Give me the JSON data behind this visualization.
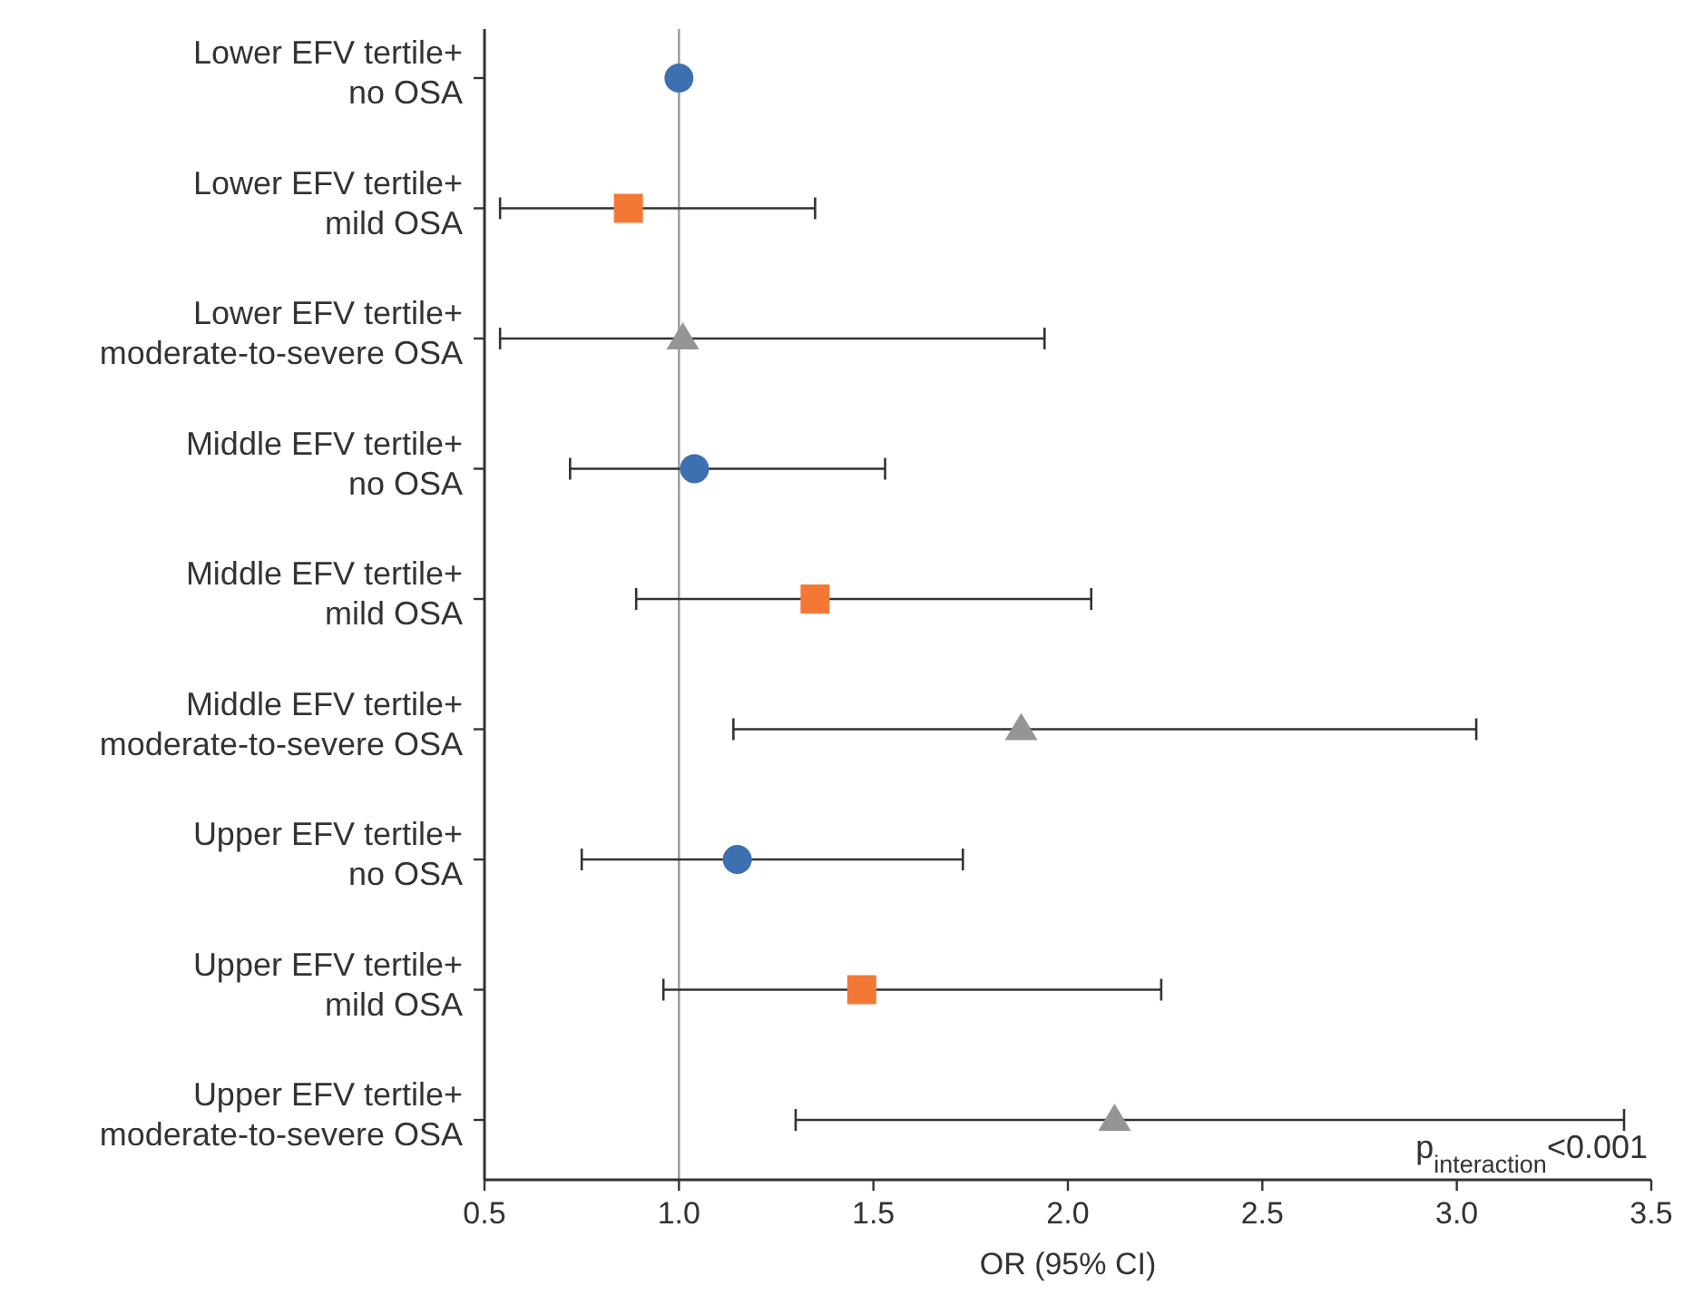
{
  "chart_data": {
    "type": "scatter",
    "orientation": "horizontal",
    "categories": [
      "Lower EFV tertile+\nno OSA",
      "Lower EFV tertile+\nmild OSA",
      "Lower EFV tertile+\nmoderate-to-severe OSA",
      "Middle EFV tertile+\nno OSA",
      "Middle EFV tertile+\nmild OSA",
      "Middle EFV tertile+\nmoderate-to-severe OSA",
      "Upper EFV tertile+\nno OSA",
      "Upper EFV tertile+\nmild OSA",
      "Upper EFV tertile+\nmoderate-to-severe OSA"
    ],
    "series": [
      {
        "color": "#3d70b0",
        "marker": "circle",
        "values": [
          1.0,
          null,
          null,
          1.04,
          null,
          null,
          1.15,
          null,
          null
        ],
        "errors": [
          null,
          null,
          null,
          [
            0.72,
            1.53
          ],
          null,
          null,
          [
            0.75,
            1.73
          ],
          null,
          null
        ]
      },
      {
        "color": "#f47835",
        "marker": "square",
        "values": [
          null,
          0.87,
          null,
          null,
          1.35,
          null,
          null,
          1.47,
          null
        ],
        "errors": [
          null,
          [
            0.54,
            1.35
          ],
          null,
          null,
          [
            0.89,
            2.06
          ],
          null,
          null,
          [
            0.96,
            2.24
          ],
          null
        ]
      },
      {
        "color": "#959595",
        "marker": "triangle",
        "values": [
          null,
          null,
          1.01,
          null,
          null,
          1.88,
          null,
          null,
          2.12
        ],
        "errors": [
          null,
          null,
          [
            0.54,
            1.94
          ],
          null,
          null,
          [
            1.14,
            3.05
          ],
          null,
          null,
          [
            1.3,
            3.43
          ]
        ]
      }
    ],
    "xlim": [
      0.5,
      3.5
    ],
    "xticks": [
      {
        "value": 0.5,
        "label": "0.5"
      },
      {
        "value": 1,
        "label": "1.0"
      },
      {
        "value": 1.5,
        "label": "1.5"
      },
      {
        "value": 2,
        "label": "2.0"
      },
      {
        "value": 2.5,
        "label": "2.5"
      },
      {
        "value": 3,
        "label": "3.0"
      },
      {
        "value": 3.5,
        "label": "3.5"
      }
    ],
    "xlabel": "OR (95% CI)",
    "ref_lines": [
      {
        "axis": "x",
        "value": 1,
        "color": "#999999"
      }
    ],
    "annotations": [
      "p$_{interaction}$<0.001"
    ]
  }
}
